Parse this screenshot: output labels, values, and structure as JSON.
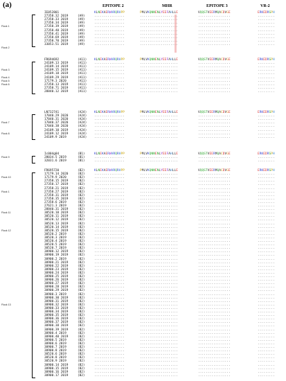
{
  "panel_label": "(a)",
  "headers": {
    "epitope2": "EPITOPE 2",
    "mhr": "MHR",
    "epitope3": "EPITOPE 3",
    "vr2": "VR-2"
  },
  "reference_seqs": {
    "epitope2": "KLNEKAERWHRQRHPP",
    "mhr": "PMLVKQNNENLYEEFAHLLE",
    "epitope3": "VQQSTVEERMQACDVGE",
    "vr2": "ERKEDRSPH"
  },
  "groups": [
    {
      "name": "A9",
      "flock_labels": [
        {
          "text": "Flock 1",
          "row": 4
        },
        {
          "text": "Flock 2",
          "row": 10
        }
      ],
      "rows": [
        {
          "label": "IE052801",
          "var": ""
        },
        {
          "label": "27358.32 2019",
          "tag": "(A9)"
        },
        {
          "label": "27358.33 2019",
          "tag": "(A9)"
        },
        {
          "label": "27358.34 2019",
          "tag": "(A9)"
        },
        {
          "label": "27358.39 2019",
          "tag": "(A9)"
        },
        {
          "label": "27358.40 2019",
          "tag": "(A9)"
        },
        {
          "label": "27358.41 2019",
          "tag": "(A9)"
        },
        {
          "label": "27358.69 2019",
          "tag": "(A9)"
        },
        {
          "label": "27358.70 2019",
          "tag": "(A9)"
        },
        {
          "label": "33053.51 2019",
          "tag": "(A9)"
        }
      ]
    },
    {
      "name": "A11",
      "flock_labels": [
        {
          "text": "Flock 3",
          "row": 3
        },
        {
          "text": "Flock 4",
          "row": 5
        },
        {
          "text": "Flock 5",
          "row": 6
        },
        {
          "text": "Flock 6",
          "row": 7
        }
      ],
      "rows": [
        {
          "label": "FR694692",
          "tag": "(A11)"
        },
        {
          "label": "24109.13 2019",
          "tag": "(A11)"
        },
        {
          "label": "24109.14 2019",
          "tag": "(A11)"
        },
        {
          "label": "24109.15 2019",
          "tag": "(A11)"
        },
        {
          "label": "24109.18 2019",
          "tag": "(A11)"
        },
        {
          "label": "24109.29 2019",
          "tag": "(A11)"
        },
        {
          "label": "17179.3 2020",
          "tag": "(A11)"
        },
        {
          "label": "27358.13 2019",
          "tag": "(A11)"
        },
        {
          "label": "27358.71 2019",
          "tag": "(A11)"
        },
        {
          "label": "28840.12 2019",
          "tag": "(A11)"
        }
      ]
    },
    {
      "name": "A24",
      "flock_labels": [
        {
          "text": "Flock 7",
          "row": 3
        },
        {
          "text": "Flock 8",
          "row": 6
        }
      ],
      "rows": [
        {
          "label": "LN732741",
          "tag": "(A24)"
        },
        {
          "label": "17040.29 2020",
          "tag": "(A24)"
        },
        {
          "label": "17040.31 2020",
          "tag": "(A24)"
        },
        {
          "label": "17040.37 2020",
          "tag": "(A24)"
        },
        {
          "label": "17040.38 2020",
          "tag": "(A24)"
        },
        {
          "label": "24109.10 2019",
          "tag": "(A24)"
        },
        {
          "label": "24109.12 2019",
          "tag": "(A24)"
        },
        {
          "label": "24109.9 2019",
          "tag": "(A24)"
        }
      ]
    },
    {
      "name": "B1",
      "flock_labels": [
        {
          "text": "Flock 9",
          "row": 1
        }
      ],
      "rows": [
        {
          "label": "Ic004g04",
          "tag": "(B1)"
        },
        {
          "label": "28034.5 2019",
          "tag": "(B1)"
        },
        {
          "label": "32031.6 2019",
          "tag": "(B1)"
        }
      ]
    },
    {
      "name": "B2",
      "flock_labels": [
        {
          "text": "Flock 10",
          "row": 2
        },
        {
          "text": "Flock 1",
          "row": 6
        },
        {
          "text": "Flock 11",
          "row": 12
        },
        {
          "text": "Flock 12",
          "row": 17
        },
        {
          "text": "Flock 13",
          "row": 38
        }
      ],
      "rows": [
        {
          "label": "FR695720",
          "tag": "(B2)"
        },
        {
          "label": "17179.14 2020",
          "tag": "(B2)"
        },
        {
          "label": "17179.9 2020",
          "tag": "(B2)"
        },
        {
          "label": "27358.15 2019",
          "tag": "(B2)"
        },
        {
          "label": "27358.17 2019",
          "tag": "(B2)"
        },
        {
          "label": "27358.21 2019",
          "tag": "(B2)"
        },
        {
          "label": "27358.27 2019",
          "tag": "(B2)"
        },
        {
          "label": "27358.31 2019",
          "tag": "(B2)"
        },
        {
          "label": "27358.35 2019",
          "tag": "(B2)"
        },
        {
          "label": "27358.6 2019",
          "tag": "(B2)"
        },
        {
          "label": "27621.3 2019",
          "tag": "(B2)"
        },
        {
          "label": "28840.31 2019",
          "tag": "(B2)"
        },
        {
          "label": "30520.10 2019",
          "tag": "(B2)"
        },
        {
          "label": "30520.11 2019",
          "tag": "(B2)"
        },
        {
          "label": "30520.12 2019",
          "tag": "(B2)"
        },
        {
          "label": "30520.13 2019",
          "tag": "(B2)"
        },
        {
          "label": "30520.14 2019",
          "tag": "(B2)"
        },
        {
          "label": "30520.15 2019",
          "tag": "(B2)"
        },
        {
          "label": "30520.2 2019",
          "tag": "(B2)"
        },
        {
          "label": "30520.3 2019",
          "tag": "(B2)"
        },
        {
          "label": "30520.4 2019",
          "tag": "(B2)"
        },
        {
          "label": "30520.5 2019",
          "tag": "(B2)"
        },
        {
          "label": "30520.7 2019",
          "tag": "(B2)"
        },
        {
          "label": "30900.12 2019",
          "tag": "(B2)"
        },
        {
          "label": "30900.19 2019",
          "tag": "(B2)"
        },
        {
          "label": "30900.2 2019",
          "tag": "(B2)"
        },
        {
          "label": "30900.21 2019",
          "tag": "(B2)"
        },
        {
          "label": "30900.22 2019",
          "tag": "(B2)"
        },
        {
          "label": "30900.23 2019",
          "tag": "(B2)"
        },
        {
          "label": "30900.24 2019",
          "tag": "(B2)"
        },
        {
          "label": "30900.25 2019",
          "tag": "(B2)"
        },
        {
          "label": "30900.26 2019",
          "tag": "(B2)"
        },
        {
          "label": "30900.27 2019",
          "tag": "(B2)"
        },
        {
          "label": "30900.28 2019",
          "tag": "(B2)"
        },
        {
          "label": "30900.29 2019",
          "tag": "(B2)"
        },
        {
          "label": "30900.3 2019",
          "tag": "(B2)"
        },
        {
          "label": "30900.30 2019",
          "tag": "(B2)"
        },
        {
          "label": "30900.31 2019",
          "tag": "(B2)"
        },
        {
          "label": "30900.32 2019",
          "tag": "(B2)"
        },
        {
          "label": "30900.33 2019",
          "tag": "(B2)"
        },
        {
          "label": "30900.34 2019",
          "tag": "(B2)"
        },
        {
          "label": "30900.35 2019",
          "tag": "(B2)"
        },
        {
          "label": "30900.36 2019",
          "tag": "(B2)"
        },
        {
          "label": "30900.37 2019",
          "tag": "(B2)"
        },
        {
          "label": "30900.38 2019",
          "tag": "(B2)"
        },
        {
          "label": "30900.39 2019",
          "tag": "(B2)"
        },
        {
          "label": "30900.4 2019",
          "tag": "(B2)"
        },
        {
          "label": "30900.40 2019",
          "tag": "(B2)"
        },
        {
          "label": "30900.5 2019",
          "tag": "(B2)"
        },
        {
          "label": "30900.6 2019",
          "tag": "(B2)"
        },
        {
          "label": "30900.7 2019",
          "tag": "(B2)"
        },
        {
          "label": "30900.8 2019",
          "tag": "(B2)"
        },
        {
          "label": "30520.6 2019",
          "tag": "(B2)"
        },
        {
          "label": "30520.8 2019",
          "tag": "(B2)"
        },
        {
          "label": "30520.9 2019",
          "tag": "(B2)"
        },
        {
          "label": "30900.14 2019",
          "tag": "(B2)"
        },
        {
          "label": "30900.15 2019",
          "tag": "(B2)"
        },
        {
          "label": "30900.16 2019",
          "tag": "(B2)"
        },
        {
          "label": "30900.17 2019",
          "tag": "(B2)"
        }
      ]
    }
  ]
}
